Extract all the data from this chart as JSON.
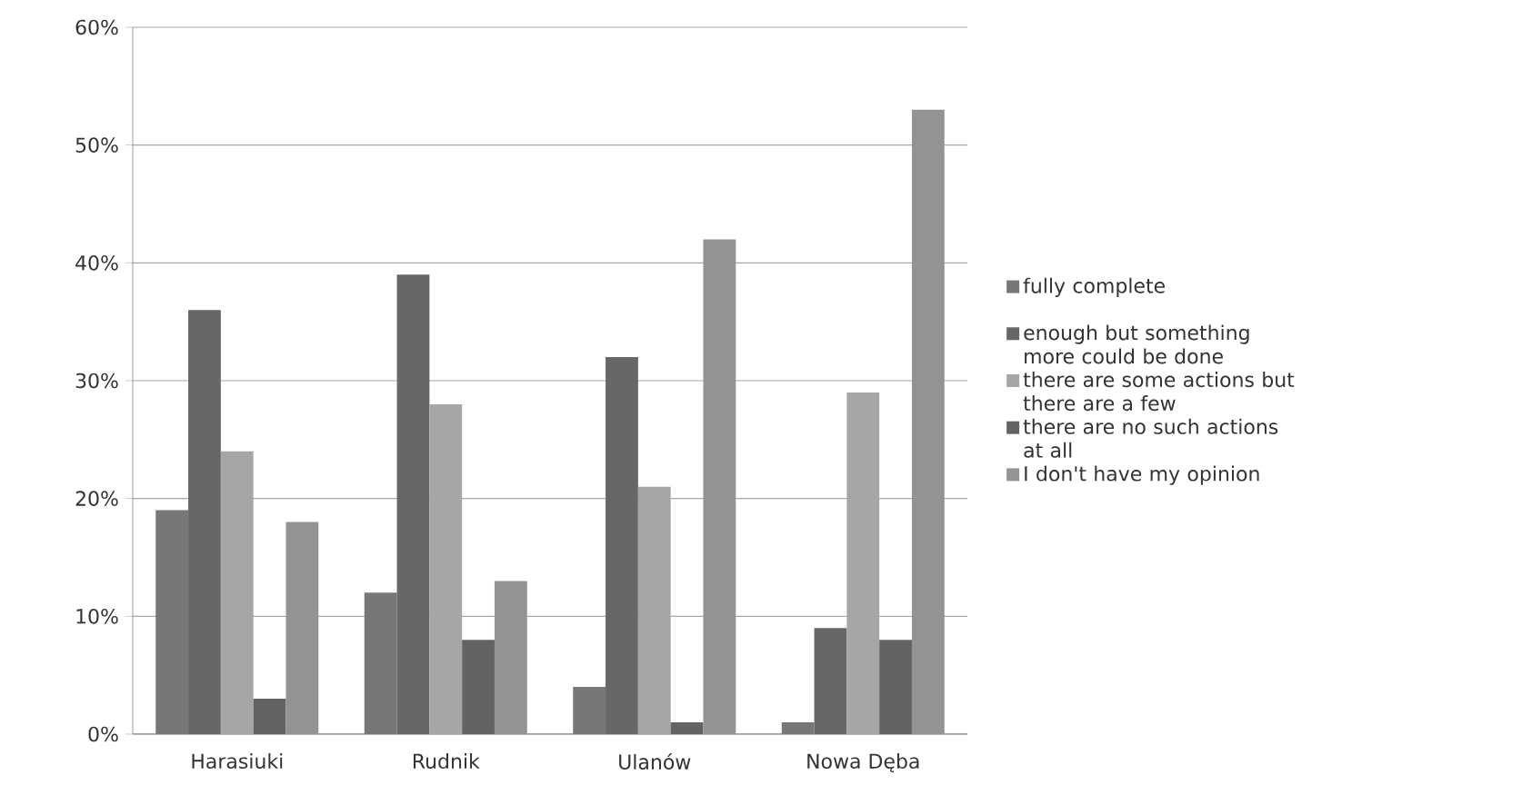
{
  "chart_data": {
    "type": "bar",
    "categories": [
      "Harasiuki",
      "Rudnik",
      "Ulanów",
      "Nowa Dęba"
    ],
    "series": [
      {
        "name": "fully complete",
        "color": "#777777",
        "values": [
          19,
          12,
          4,
          1
        ]
      },
      {
        "name": "enough but something more could be done",
        "color": "#676767",
        "values": [
          36,
          39,
          32,
          9
        ]
      },
      {
        "name": "there are some actions but there are a few",
        "color": "#a6a6a6",
        "values": [
          24,
          28,
          21,
          29
        ]
      },
      {
        "name": "there are no such actions at all",
        "color": "#636363",
        "values": [
          3,
          8,
          1,
          8
        ]
      },
      {
        "name": "I don't have my opinion",
        "color": "#939393",
        "values": [
          18,
          13,
          42,
          53
        ]
      }
    ],
    "ylim": [
      0,
      60
    ],
    "yticks": [
      {
        "value": 0,
        "label": "0%"
      },
      {
        "value": 10,
        "label": "10%"
      },
      {
        "value": 20,
        "label": "20%"
      },
      {
        "value": 30,
        "label": "30%"
      },
      {
        "value": 40,
        "label": "40%"
      },
      {
        "value": 50,
        "label": "50%"
      },
      {
        "value": 60,
        "label": "60%"
      }
    ],
    "grid": "y",
    "legend": "right"
  }
}
